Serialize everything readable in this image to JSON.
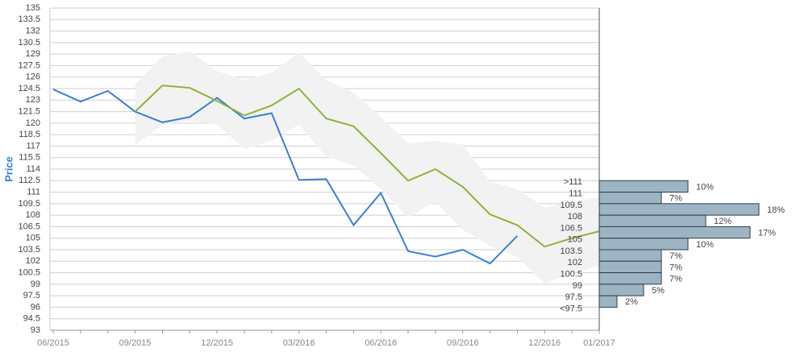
{
  "chart_data": [
    {
      "type": "line",
      "ylabel": "Price",
      "categories": [
        "06/2015",
        null,
        null,
        "09/2015",
        null,
        null,
        "12/2015",
        null,
        null,
        "03/2016",
        null,
        null,
        "06/2016",
        null,
        null,
        "09/2016",
        null,
        null,
        "12/2016",
        null,
        "01/2017"
      ],
      "ylim": [
        93,
        135
      ],
      "yticks": [
        93,
        94.5,
        96,
        97.5,
        99,
        100.5,
        102,
        103.5,
        105,
        106.5,
        108,
        109.5,
        111,
        112.5,
        114,
        115.5,
        117,
        118.5,
        120,
        121.5,
        123,
        124.5,
        126,
        127.5,
        129,
        130.5,
        132,
        133.5,
        135
      ],
      "grid": true,
      "series": [
        {
          "color": "#3a7fd5",
          "values": [
            124.4,
            122.8,
            124.2,
            121.5,
            120.1,
            120.8,
            123.3,
            120.6,
            121.3,
            112.6,
            112.7,
            106.7,
            110.9,
            103.3,
            102.6,
            103.5,
            101.7,
            105.3,
            null,
            null,
            null
          ]
        },
        {
          "color": "#8db33a",
          "values": [
            null,
            null,
            null,
            121.5,
            124.9,
            124.6,
            122.9,
            121.0,
            122.3,
            124.5,
            120.6,
            119.6,
            116.1,
            112.5,
            114.0,
            111.7,
            108.1,
            106.7,
            103.9,
            105.0,
            105.9
          ]
        }
      ],
      "band": {
        "color": "#f2f2f2",
        "upper": [
          null,
          null,
          null,
          125.1,
          128.7,
          129.4,
          126.8,
          125.6,
          126.6,
          129.2,
          125.6,
          124.0,
          120.8,
          117.4,
          117.7,
          117.2,
          112.4,
          111.4,
          109.0,
          109.8,
          110.3
        ],
        "lower": [
          null,
          null,
          null,
          117.2,
          119.8,
          120.3,
          119.8,
          116.6,
          117.7,
          119.8,
          115.6,
          114.5,
          111.4,
          107.7,
          109.8,
          106.1,
          104.0,
          102.5,
          99.1,
          100.4,
          101.4
        ]
      }
    },
    {
      "type": "histogram",
      "orientation": "horizontal",
      "color": "#9db5c3",
      "bins": [
        {
          "value": 112.5,
          "label": ">111"
        },
        111,
        109.5,
        108,
        106.5,
        105,
        103.5,
        102,
        100.5,
        99,
        97.5,
        {
          "value": 96,
          "label": "<97.5"
        }
      ],
      "values": [
        10,
        7,
        18,
        12,
        17,
        10,
        7,
        7,
        7,
        5,
        2
      ],
      "value_labels": [
        "10%",
        "7%",
        "18%",
        "12%",
        "17%",
        "10%",
        "7%",
        "7%",
        "7%",
        "5%",
        "2%"
      ]
    }
  ]
}
